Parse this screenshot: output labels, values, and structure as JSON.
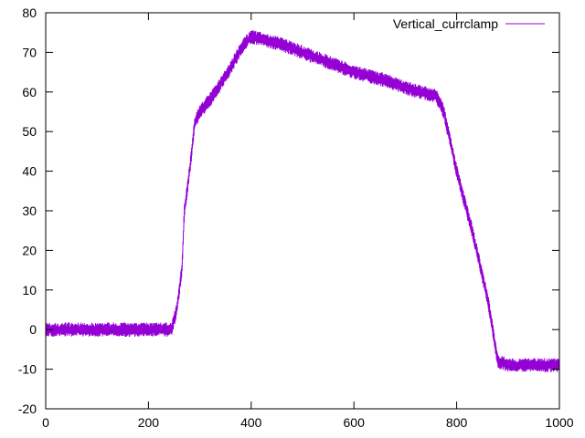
{
  "chart_data": {
    "type": "line",
    "title": "",
    "xlabel": "",
    "ylabel": "",
    "xlim": [
      0,
      1000
    ],
    "ylim": [
      -20,
      80
    ],
    "xticks": [
      0,
      200,
      400,
      600,
      800,
      1000
    ],
    "yticks": [
      -20,
      -10,
      0,
      10,
      20,
      30,
      40,
      50,
      60,
      70,
      80
    ],
    "grid": false,
    "legend_position": "top-right",
    "series": [
      {
        "name": "Vertical_currclamp",
        "color": "#9400D3",
        "noise_amplitude": 1.8,
        "x": [
          0,
          100,
          200,
          245,
          255,
          265,
          270,
          280,
          290,
          300,
          320,
          340,
          360,
          380,
          400,
          430,
          460,
          500,
          560,
          600,
          660,
          700,
          760,
          775,
          800,
          830,
          860,
          880,
          900,
          950,
          1000
        ],
        "y": [
          0,
          0,
          0,
          0,
          5,
          15,
          30,
          40,
          52,
          55,
          58,
          62,
          66,
          71,
          74,
          73,
          72,
          70,
          67,
          65,
          63,
          61,
          59,
          55,
          40,
          25,
          8,
          -8,
          -9,
          -9,
          -9
        ]
      }
    ]
  }
}
